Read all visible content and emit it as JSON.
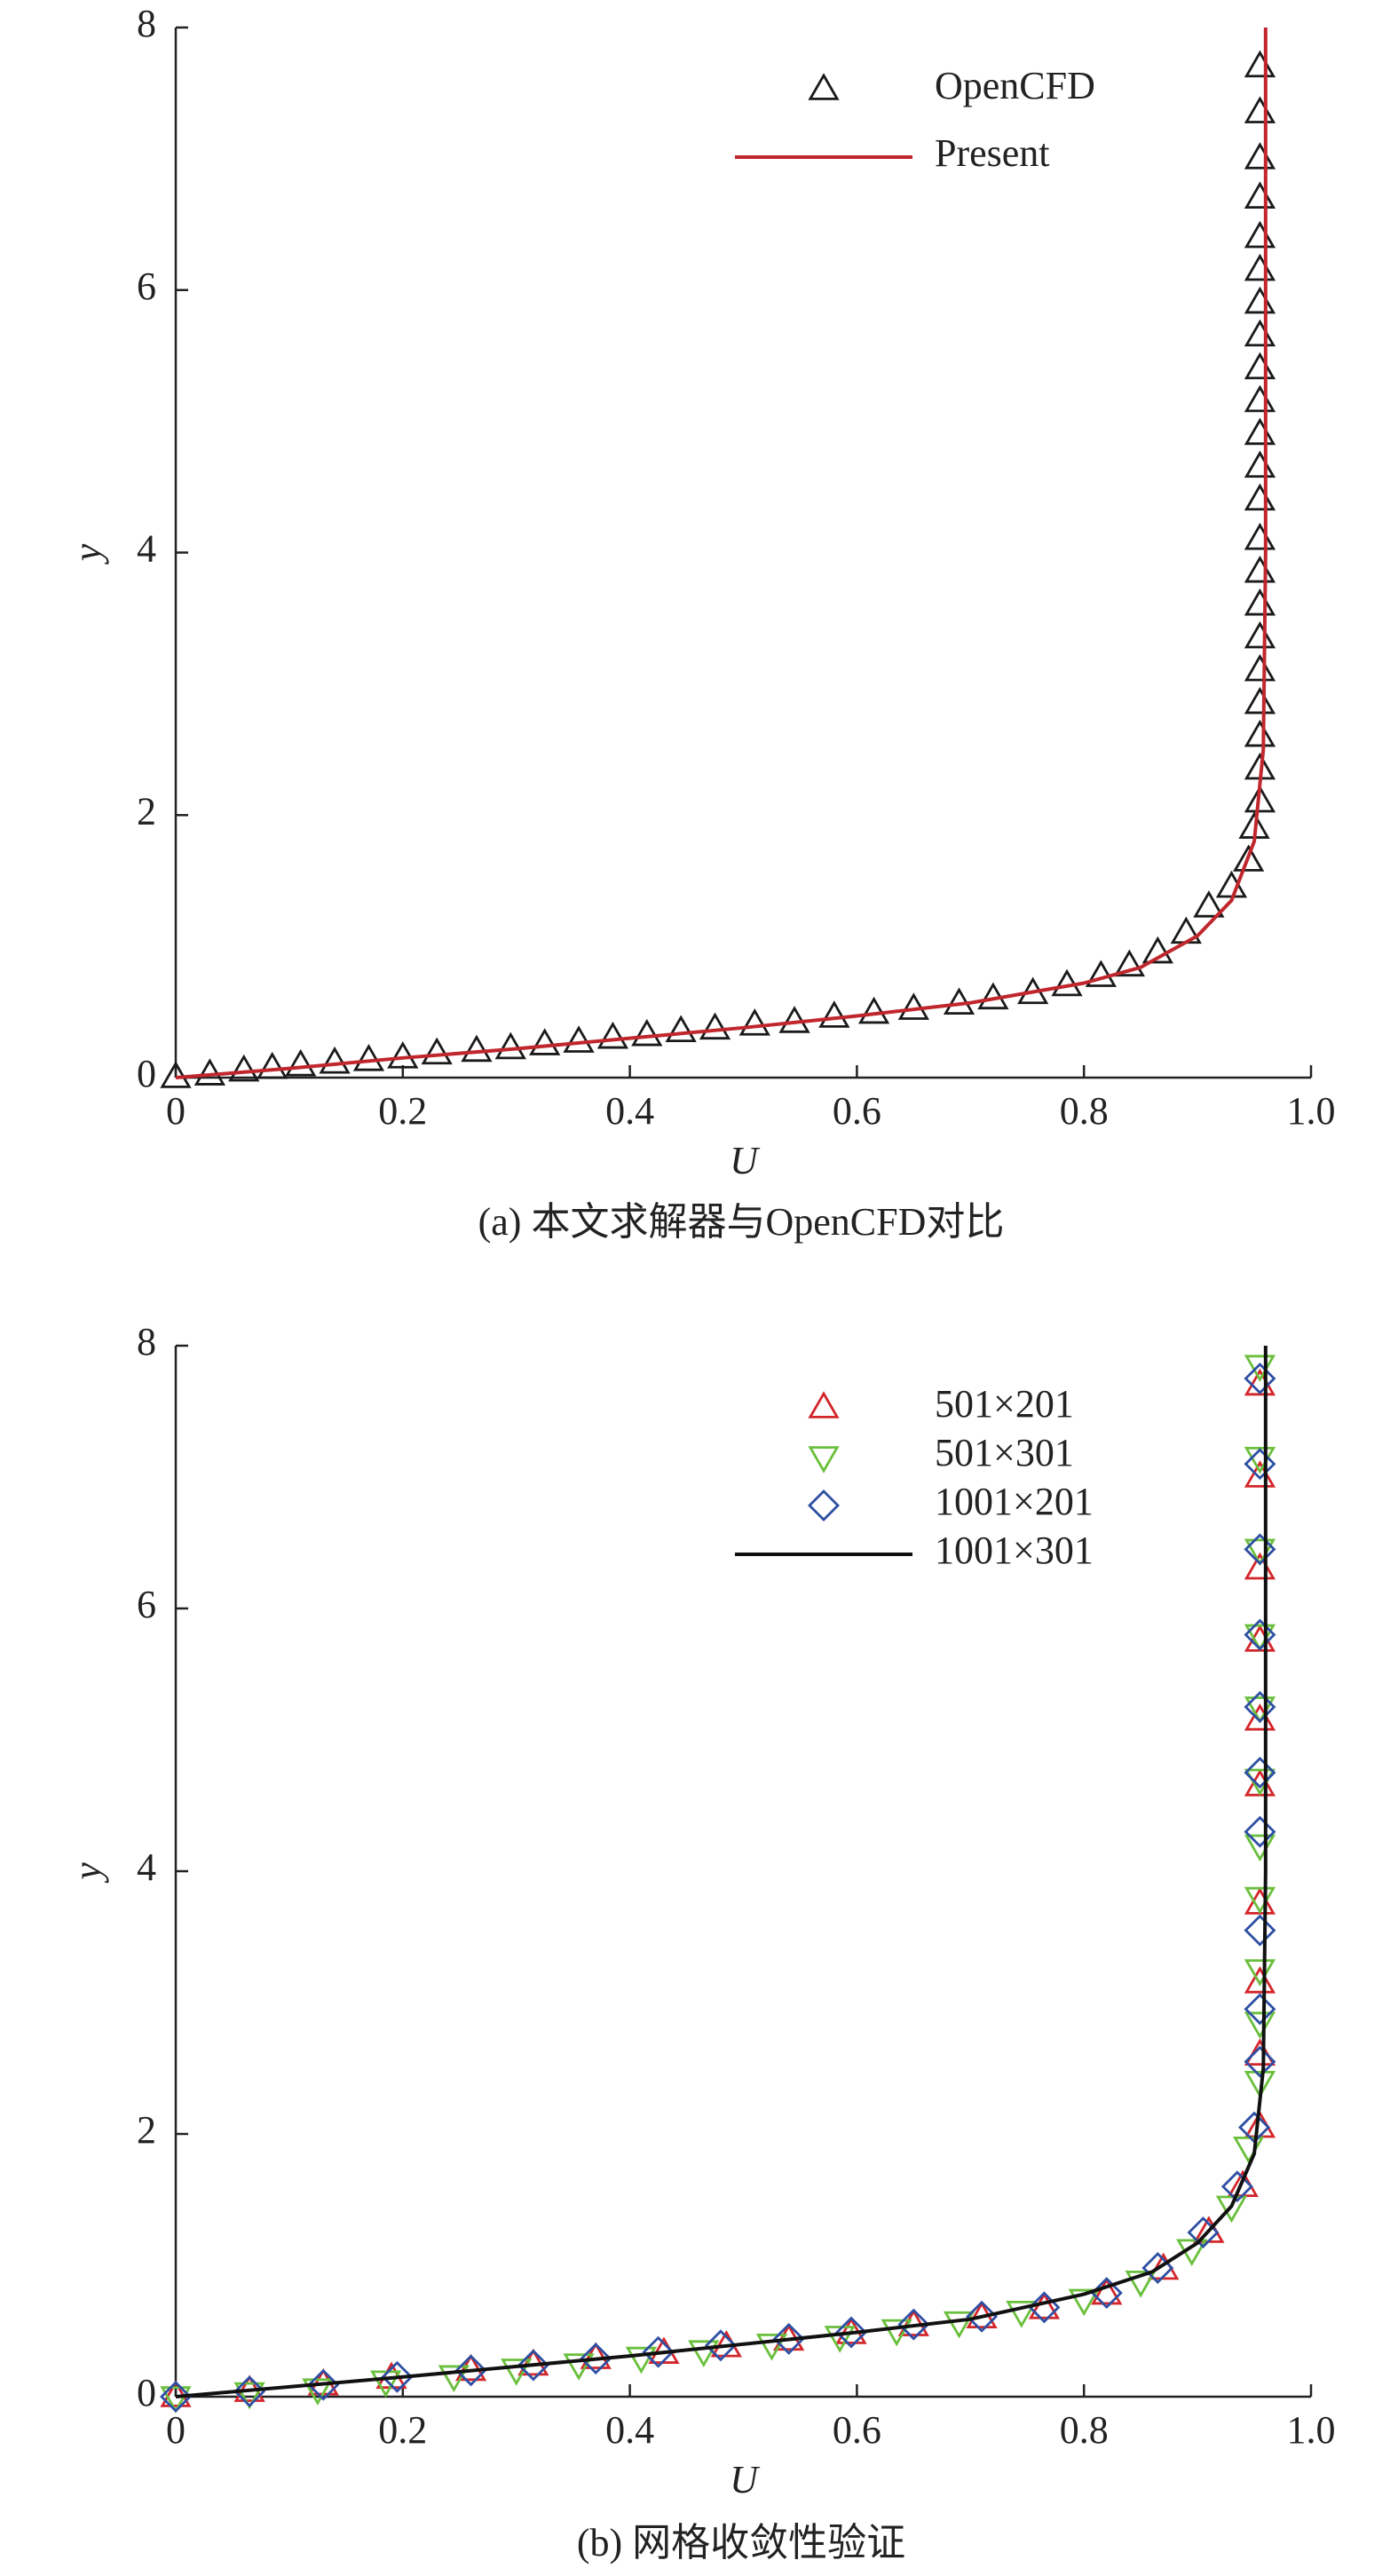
{
  "chart_data": [
    {
      "type": "line",
      "caption": "(a) 本文求解器与OpenCFD对比",
      "xlabel": "U",
      "ylabel": "y",
      "xlim": [
        0,
        1
      ],
      "ylim": [
        0,
        8
      ],
      "xticks": [
        0,
        0.2,
        0.4,
        0.6,
        0.8,
        {
          "value": 1,
          "label": "1.0"
        }
      ],
      "yticks": [
        0,
        2,
        4,
        6,
        8
      ],
      "legend": "upper right",
      "series": [
        {
          "name": "OpenCFD",
          "kind": "markers",
          "marker": "triangle-up",
          "color": "#1a1a1a",
          "x": [
            0,
            0.03,
            0.06,
            0.085,
            0.11,
            0.14,
            0.17,
            0.2,
            0.23,
            0.265,
            0.295,
            0.325,
            0.355,
            0.385,
            0.415,
            0.445,
            0.475,
            0.51,
            0.545,
            0.58,
            0.615,
            0.65,
            0.69,
            0.72,
            0.755,
            0.785,
            0.815,
            0.84,
            0.865,
            0.89,
            0.91,
            0.93,
            0.945,
            0.95,
            0.955,
            0.955,
            0.955,
            0.955,
            0.955,
            0.955,
            0.955,
            0.955,
            0.955,
            0.955,
            0.955,
            0.955,
            0.955,
            0.955,
            0.955,
            0.955,
            0.955,
            0.955,
            0.955,
            0.955,
            0.955,
            0.955
          ],
          "values": [
            0,
            0.02,
            0.05,
            0.07,
            0.09,
            0.11,
            0.13,
            0.15,
            0.18,
            0.2,
            0.22,
            0.25,
            0.27,
            0.3,
            0.32,
            0.35,
            0.37,
            0.4,
            0.42,
            0.46,
            0.49,
            0.52,
            0.56,
            0.6,
            0.64,
            0.7,
            0.77,
            0.85,
            0.95,
            1.1,
            1.3,
            1.45,
            1.65,
            1.9,
            2.1,
            2.35,
            2.6,
            2.85,
            3.1,
            3.35,
            3.6,
            3.85,
            4.1,
            4.4,
            4.65,
            4.9,
            5.15,
            5.4,
            5.65,
            5.9,
            6.15,
            6.4,
            6.7,
            7.0,
            7.35,
            7.7
          ]
        },
        {
          "name": "Present",
          "kind": "line",
          "color": "#c0272d",
          "x": [
            0,
            0.1,
            0.2,
            0.3,
            0.4,
            0.5,
            0.6,
            0.7,
            0.8,
            0.85,
            0.9,
            0.93,
            0.95,
            0.958,
            0.96,
            0.96
          ],
          "values": [
            0,
            0.07,
            0.15,
            0.22,
            0.3,
            0.38,
            0.47,
            0.57,
            0.72,
            0.84,
            1.08,
            1.35,
            1.8,
            2.5,
            4,
            8
          ]
        }
      ]
    },
    {
      "type": "line",
      "caption": "(b) 网格收敛性验证",
      "xlabel": "U",
      "ylabel": "y",
      "xlim": [
        0,
        1
      ],
      "ylim": [
        0,
        8
      ],
      "xticks": [
        0,
        0.2,
        0.4,
        0.6,
        0.8,
        {
          "value": 1,
          "label": "1.0"
        }
      ],
      "yticks": [
        0,
        2,
        4,
        6,
        8
      ],
      "legend": "upper right",
      "series": [
        {
          "name": "501×201",
          "kind": "markers",
          "marker": "triangle-up",
          "color": "#d3262b",
          "x": [
            0,
            0.065,
            0.13,
            0.19,
            0.26,
            0.315,
            0.37,
            0.43,
            0.485,
            0.54,
            0.595,
            0.65,
            0.71,
            0.765,
            0.82,
            0.87,
            0.91,
            0.94,
            0.955,
            0.955,
            0.955,
            0.955,
            0.955,
            0.955,
            0.955,
            0.955,
            0.955,
            0.955
          ],
          "values": [
            0,
            0.04,
            0.09,
            0.14,
            0.2,
            0.24,
            0.29,
            0.33,
            0.38,
            0.43,
            0.48,
            0.54,
            0.6,
            0.67,
            0.78,
            0.97,
            1.25,
            1.6,
            2.05,
            2.6,
            3.15,
            3.75,
            4.65,
            5.15,
            5.75,
            6.3,
            7.0,
            7.7
          ]
        },
        {
          "name": "501×301",
          "kind": "markers",
          "marker": "triangle-down",
          "color": "#6abf3c",
          "x": [
            0,
            0.065,
            0.125,
            0.185,
            0.245,
            0.3,
            0.355,
            0.41,
            0.465,
            0.525,
            0.585,
            0.635,
            0.69,
            0.745,
            0.8,
            0.85,
            0.895,
            0.93,
            0.945,
            0.955,
            0.955,
            0.955,
            0.955,
            0.955,
            0.955,
            0.955,
            0.955,
            0.955,
            0.955,
            0.955
          ],
          "values": [
            0,
            0.03,
            0.06,
            0.12,
            0.16,
            0.21,
            0.25,
            0.3,
            0.35,
            0.4,
            0.46,
            0.51,
            0.57,
            0.65,
            0.74,
            0.88,
            1.12,
            1.45,
            1.9,
            2.4,
            2.85,
            3.25,
            3.8,
            4.2,
            4.7,
            5.25,
            5.8,
            6.45,
            7.15,
            7.85
          ]
        },
        {
          "name": "1001×201",
          "kind": "markers",
          "marker": "diamond",
          "color": "#2e4fa3",
          "x": [
            0,
            0.065,
            0.13,
            0.195,
            0.26,
            0.315,
            0.37,
            0.425,
            0.48,
            0.54,
            0.595,
            0.65,
            0.71,
            0.765,
            0.82,
            0.865,
            0.905,
            0.935,
            0.95,
            0.955,
            0.955,
            0.955,
            0.955,
            0.955,
            0.955,
            0.955,
            0.955,
            0.955,
            0.955
          ],
          "values": [
            0,
            0.04,
            0.09,
            0.15,
            0.2,
            0.24,
            0.29,
            0.34,
            0.39,
            0.44,
            0.49,
            0.55,
            0.61,
            0.68,
            0.79,
            0.98,
            1.25,
            1.6,
            2.05,
            2.55,
            2.95,
            3.55,
            4.3,
            4.75,
            5.25,
            5.8,
            6.45,
            7.1,
            7.75
          ]
        },
        {
          "name": "1001×301",
          "kind": "line",
          "color": "#111111",
          "x": [
            0,
            0.2,
            0.4,
            0.6,
            0.7,
            0.8,
            0.86,
            0.9,
            0.93,
            0.95,
            0.958,
            0.96,
            0.96
          ],
          "values": [
            0,
            0.15,
            0.31,
            0.49,
            0.59,
            0.78,
            0.95,
            1.17,
            1.45,
            1.85,
            2.5,
            4,
            8
          ]
        }
      ]
    }
  ]
}
